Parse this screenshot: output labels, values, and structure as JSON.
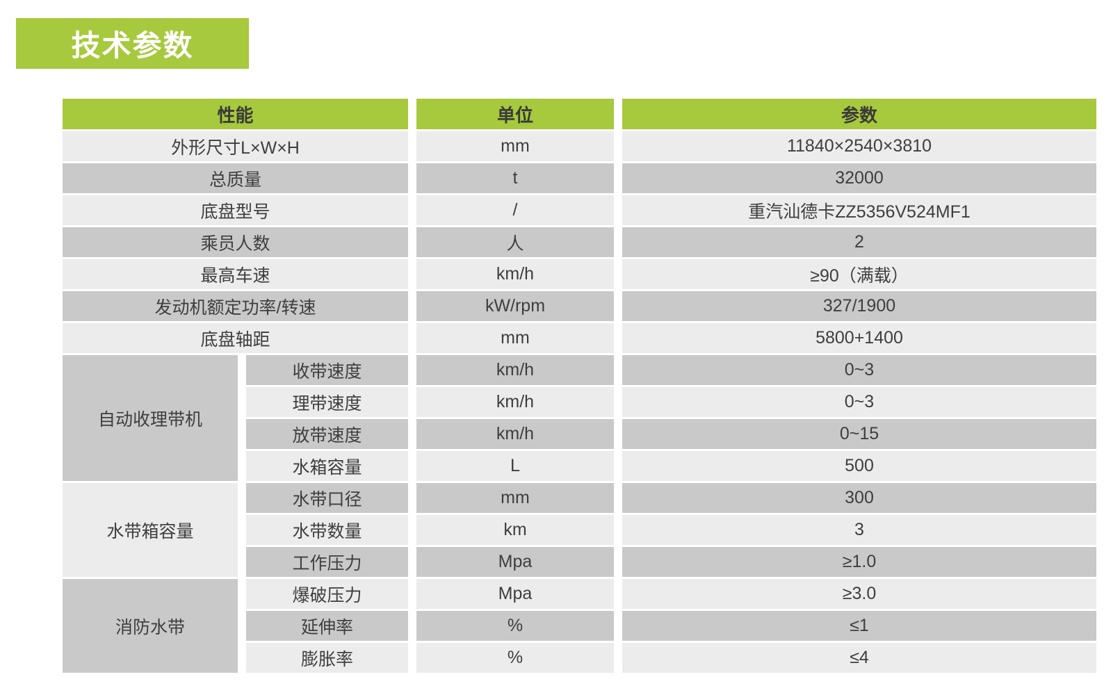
{
  "page_title": "技术参数",
  "colors": {
    "accent_green": "#a7c93d",
    "row_light": "#ececed",
    "row_dark": "#c9c9ca",
    "text": "#3e3e3e"
  },
  "table": {
    "headers": {
      "performance": "性能",
      "unit": "单位",
      "parameter": "参数"
    },
    "simple_rows": [
      {
        "label": "外形尺寸L×W×H",
        "unit": "mm",
        "value": "11840×2540×3810"
      },
      {
        "label": "总质量",
        "unit": "t",
        "value": "32000"
      },
      {
        "label": "底盘型号",
        "unit": "/",
        "value": "重汽汕德卡ZZ5356V524MF1"
      },
      {
        "label": "乘员人数",
        "unit": "人",
        "value": "2"
      },
      {
        "label": "最高车速",
        "unit": "km/h",
        "value": "≥90（满载）"
      },
      {
        "label": "发动机额定功率/转速",
        "unit": "kW/rpm",
        "value": "327/1900"
      },
      {
        "label": "底盘轴距",
        "unit": "mm",
        "value": "5800+1400"
      }
    ],
    "groups": [
      {
        "label": "自动收理带机",
        "rows": [
          {
            "label": "收带速度",
            "unit": "km/h",
            "value": "0~3"
          },
          {
            "label": "理带速度",
            "unit": "km/h",
            "value": "0~3"
          },
          {
            "label": "放带速度",
            "unit": "km/h",
            "value": "0~15"
          },
          {
            "label": "水箱容量",
            "unit": "L",
            "value": "500"
          }
        ]
      },
      {
        "label": "水带箱容量",
        "rows": [
          {
            "label": "水带口径",
            "unit": "mm",
            "value": "300"
          },
          {
            "label": "水带数量",
            "unit": "km",
            "value": "3"
          },
          {
            "label": "工作压力",
            "unit": "Mpa",
            "value": "≥1.0"
          }
        ]
      },
      {
        "label": "消防水带",
        "rows": [
          {
            "label": "爆破压力",
            "unit": "Mpa",
            "value": "≥3.0"
          },
          {
            "label": "延伸率",
            "unit": "%",
            "value": "≤1"
          },
          {
            "label": "膨胀率",
            "unit": "%",
            "value": "≤4"
          }
        ]
      }
    ]
  }
}
